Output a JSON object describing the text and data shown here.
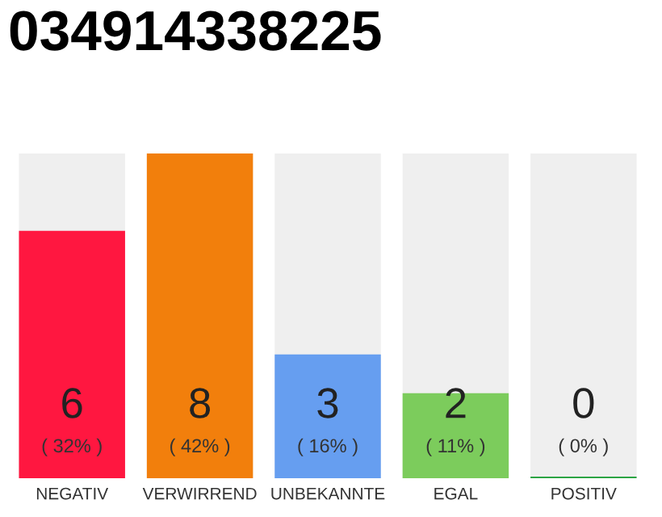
{
  "chart_data": {
    "type": "bar",
    "title": "034914338225",
    "categories": [
      "NEGATIV",
      "VERWIRREND",
      "UNBEKANNTE",
      "EGAL",
      "POSITIV"
    ],
    "values": [
      32,
      42,
      16,
      11,
      0
    ],
    "colors": [
      "#ff1740",
      "#f27f0c",
      "#669ef0",
      "#7ccc5c",
      "#2ca444"
    ],
    "value_labels": [
      "( 32% )",
      "( 42% )",
      "( 16% )",
      "( 11% )",
      "( 0% )"
    ],
    "annotations": [
      "6",
      "8",
      "3",
      "2",
      "0"
    ],
    "tick_labels": "x"
  }
}
